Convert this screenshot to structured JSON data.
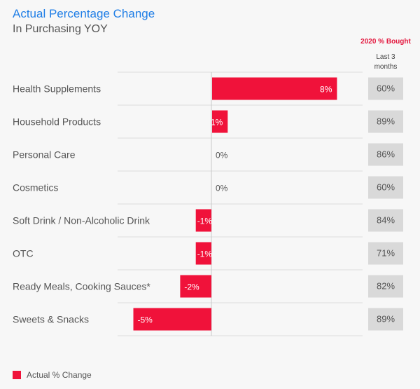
{
  "header": {
    "title": "Actual Percentage Change",
    "subtitle": "In Purchasing YOY",
    "col_title": "2020 % Bought",
    "col_subtitle": "Last 3 months"
  },
  "legend": {
    "label": "Actual % Change"
  },
  "colors": {
    "bar": "#f0123a",
    "title": "#1f7ee6",
    "col_title": "#e3173e",
    "pct_box": "#d9d9d9"
  },
  "chart_data": {
    "type": "bar",
    "orientation": "horizontal",
    "categories": [
      "Health Supplements",
      "Household Products",
      "Personal Care",
      "Cosmetics",
      "Soft Drink / Non-Alcoholic Drink",
      "OTC",
      "Ready Meals, Cooking Sauces*",
      "Sweets & Snacks"
    ],
    "series": [
      {
        "name": "Actual % Change",
        "values": [
          8,
          1,
          0,
          0,
          -1,
          -1,
          -2,
          -5
        ],
        "labels": [
          "8%",
          "1%",
          "0%",
          "0%",
          "-1%",
          "-1%",
          "-2%",
          "-5%"
        ]
      }
    ],
    "bought": [
      "60%",
      "89%",
      "86%",
      "60%",
      "84%",
      "71%",
      "82%",
      "89%"
    ],
    "xlim": [
      -6,
      9
    ]
  }
}
